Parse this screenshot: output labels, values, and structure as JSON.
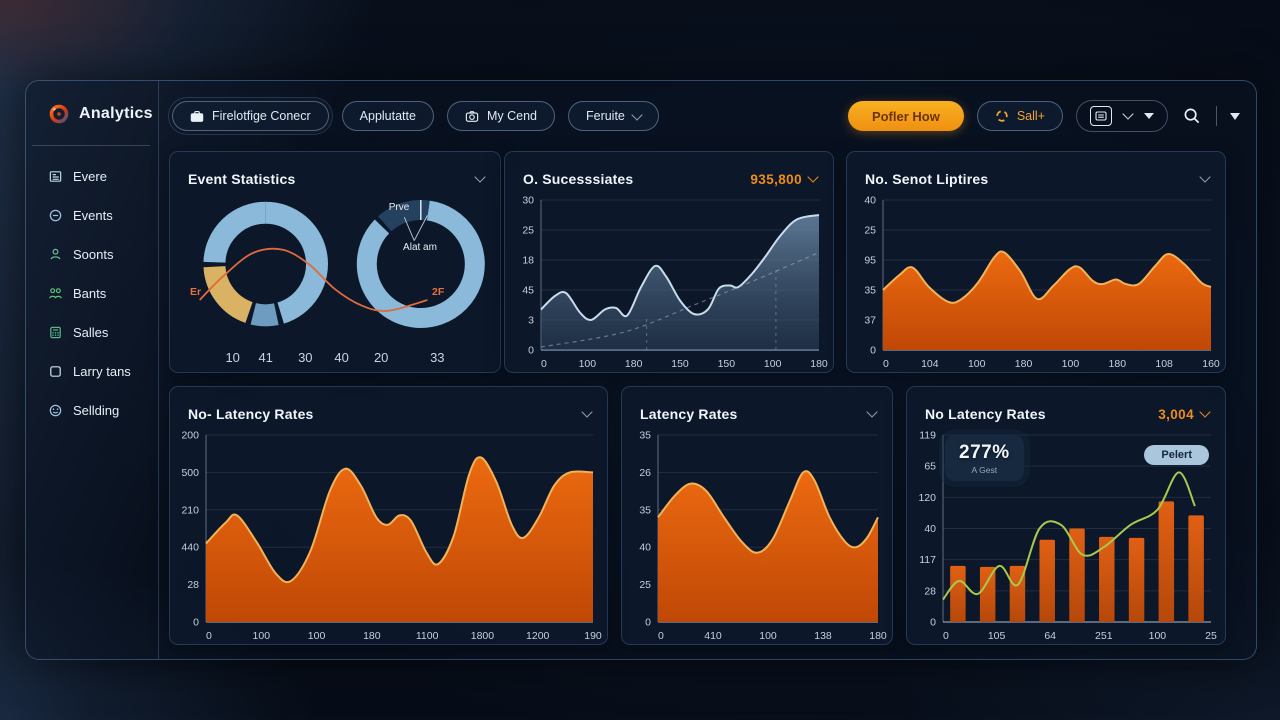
{
  "app": {
    "logo": "Analytics"
  },
  "sidebar": {
    "items": [
      {
        "icon": "news-icon",
        "label": "Evere"
      },
      {
        "icon": "clock-icon",
        "label": "Events"
      },
      {
        "icon": "person-icon",
        "label": "Soonts"
      },
      {
        "icon": "people-icon",
        "label": "Bants"
      },
      {
        "icon": "calculator-icon",
        "label": "Salles"
      },
      {
        "icon": "square-icon",
        "label": "Larry tans"
      },
      {
        "icon": "smiley-icon",
        "label": "Sellding"
      }
    ]
  },
  "toolbar": {
    "filters": [
      {
        "icon": "briefcase-icon",
        "label": "Firelotfige Conecr"
      },
      {
        "label": "Applutatte"
      },
      {
        "icon": "camera-icon",
        "label": "My Cend"
      },
      {
        "label": "Feruite"
      }
    ],
    "primary_label": "Pofler How",
    "sale_label": "Sall+"
  },
  "colors": {
    "accent_orange": "#ef8c1a",
    "chart_orange_top": "#ec6a10",
    "chart_orange_bottom": "#c04806",
    "donut_blue": "#8ab9d9",
    "donut_yellow": "#d9b264",
    "line_green": "#a8c94e"
  },
  "panels": {
    "event_statistics": {
      "title": "Event Statistics"
    },
    "success_rates": {
      "title": "O. Sucesssiates",
      "value": "935,800"
    },
    "sensor_uptimes": {
      "title": "No. Senot Liptires"
    },
    "no_latency_rates": {
      "title": "No- Latency Rates"
    },
    "latency_rates": {
      "title": "Latency Rates"
    },
    "latency_overview": {
      "title": "No Latency Rates",
      "value": "3,004",
      "badge_value": "277%",
      "badge_label": "A Gest",
      "pill_label": "Pelert"
    }
  },
  "chart_data": {
    "event_statistics": {
      "type": "donuts",
      "donuts": [
        {
          "cx": 0.29,
          "cy": 0.4,
          "r": 0.285,
          "sw": 22,
          "segs": [
            {
              "color": "#8ab9d9",
              "a0": 0,
              "a1": 163
            },
            {
              "color": "#6e9cc0",
              "a0": 168,
              "a1": 194
            },
            {
              "color": "#d9b264",
              "a0": 199,
              "a1": 267
            },
            {
              "color": "#8ab9d9",
              "a0": 272,
              "a1": 360
            }
          ]
        },
        {
          "cx": 0.76,
          "cy": 0.4,
          "r": 0.3,
          "sw": 20,
          "tick": 0,
          "segs": [
            {
              "color": "#8ab9d9",
              "a0": 8,
              "a1": 314
            },
            {
              "color": "#24415f",
              "a0": 318,
              "a1": 368
            }
          ]
        }
      ],
      "pointers": [
        [
          [
            0.74,
            0.27
          ],
          [
            0.71,
            0.14
          ]
        ],
        [
          [
            0.74,
            0.27
          ],
          [
            0.78,
            0.13
          ]
        ]
      ],
      "curve": {
        "color": "#e06a3c",
        "points": [
          [
            0.09,
            0.6
          ],
          [
            0.16,
            0.47
          ],
          [
            0.25,
            0.34
          ],
          [
            0.34,
            0.32
          ],
          [
            0.42,
            0.4
          ],
          [
            0.5,
            0.54
          ],
          [
            0.58,
            0.63
          ],
          [
            0.66,
            0.66
          ],
          [
            0.78,
            0.6
          ]
        ]
      },
      "labels": {
        "curve_left": "Er",
        "curve_right": "2F",
        "slice_outer": "Prve",
        "slice_inner": "Alat am"
      },
      "xticks": [
        "10",
        "41",
        "30",
        "40",
        "20",
        "33"
      ],
      "xtick_pos": [
        0.19,
        0.29,
        0.41,
        0.52,
        0.64,
        0.81
      ]
    },
    "success_rates": {
      "type": "area",
      "stroke": "#c9dcec",
      "fill_top": "rgba(112,142,172,0.80)",
      "fill_bottom": "rgba(58,82,108,0.40)",
      "yticks": [
        "30",
        "25",
        "18",
        "45",
        "3",
        "0"
      ],
      "xticks": [
        "0",
        "100",
        "180",
        "150",
        "150",
        "100",
        "180"
      ],
      "points": [
        [
          0,
          0.27
        ],
        [
          0.05,
          0.36
        ],
        [
          0.09,
          0.38
        ],
        [
          0.14,
          0.25
        ],
        [
          0.18,
          0.2
        ],
        [
          0.23,
          0.27
        ],
        [
          0.27,
          0.28
        ],
        [
          0.31,
          0.23
        ],
        [
          0.36,
          0.42
        ],
        [
          0.41,
          0.56
        ],
        [
          0.45,
          0.49
        ],
        [
          0.5,
          0.33
        ],
        [
          0.55,
          0.24
        ],
        [
          0.6,
          0.27
        ],
        [
          0.64,
          0.41
        ],
        [
          0.68,
          0.43
        ],
        [
          0.71,
          0.42
        ],
        [
          0.76,
          0.51
        ],
        [
          0.81,
          0.63
        ],
        [
          0.86,
          0.76
        ],
        [
          0.92,
          0.87
        ],
        [
          1,
          0.9
        ]
      ],
      "dashed": {
        "points": [
          [
            0,
            0.02
          ],
          [
            0.3,
            0.12
          ],
          [
            0.55,
            0.3
          ],
          [
            0.75,
            0.45
          ],
          [
            1,
            0.65
          ]
        ],
        "vlines": [
          [
            0.38,
            0.22
          ],
          [
            0.845,
            0.56
          ]
        ]
      }
    },
    "sensor_uptimes": {
      "type": "area",
      "stroke": "#f0b35a",
      "fill_top": "#ec6a10",
      "fill_bottom": "#c04806",
      "yticks": [
        "40",
        "25",
        "95",
        "35",
        "37",
        "0"
      ],
      "xticks": [
        "0",
        "104",
        "100",
        "180",
        "100",
        "180",
        "108",
        "160"
      ],
      "points": [
        [
          0,
          0.4
        ],
        [
          0.05,
          0.5
        ],
        [
          0.09,
          0.55
        ],
        [
          0.14,
          0.42
        ],
        [
          0.2,
          0.32
        ],
        [
          0.24,
          0.34
        ],
        [
          0.29,
          0.45
        ],
        [
          0.34,
          0.62
        ],
        [
          0.37,
          0.65
        ],
        [
          0.42,
          0.52
        ],
        [
          0.47,
          0.34
        ],
        [
          0.52,
          0.43
        ],
        [
          0.57,
          0.54
        ],
        [
          0.6,
          0.55
        ],
        [
          0.64,
          0.46
        ],
        [
          0.67,
          0.44
        ],
        [
          0.71,
          0.47
        ],
        [
          0.74,
          0.44
        ],
        [
          0.78,
          0.44
        ],
        [
          0.83,
          0.56
        ],
        [
          0.87,
          0.64
        ],
        [
          0.92,
          0.57
        ],
        [
          0.97,
          0.45
        ],
        [
          1,
          0.42
        ]
      ]
    },
    "no_latency_rates": {
      "type": "area",
      "stroke": "#f0b35a",
      "fill_top": "#ec6a10",
      "fill_bottom": "#c04806",
      "yticks": [
        "200",
        "500",
        "210",
        "440",
        "28",
        "0"
      ],
      "xticks": [
        "0",
        "100",
        "100",
        "180",
        "1100",
        "1800",
        "1200",
        "190"
      ],
      "points": [
        [
          0,
          0.42
        ],
        [
          0.05,
          0.53
        ],
        [
          0.08,
          0.57
        ],
        [
          0.13,
          0.43
        ],
        [
          0.18,
          0.26
        ],
        [
          0.22,
          0.22
        ],
        [
          0.27,
          0.38
        ],
        [
          0.32,
          0.7
        ],
        [
          0.36,
          0.82
        ],
        [
          0.4,
          0.73
        ],
        [
          0.44,
          0.56
        ],
        [
          0.47,
          0.52
        ],
        [
          0.5,
          0.57
        ],
        [
          0.53,
          0.54
        ],
        [
          0.57,
          0.37
        ],
        [
          0.6,
          0.31
        ],
        [
          0.64,
          0.46
        ],
        [
          0.68,
          0.79
        ],
        [
          0.71,
          0.88
        ],
        [
          0.75,
          0.75
        ],
        [
          0.79,
          0.52
        ],
        [
          0.82,
          0.45
        ],
        [
          0.86,
          0.56
        ],
        [
          0.9,
          0.73
        ],
        [
          0.94,
          0.8
        ],
        [
          1,
          0.8
        ]
      ]
    },
    "latency_rates": {
      "type": "area",
      "stroke": "#f0b35a",
      "fill_top": "#ec6a10",
      "fill_bottom": "#c04806",
      "yticks": [
        "35",
        "26",
        "35",
        "40",
        "25",
        "0"
      ],
      "xticks": [
        "0",
        "410",
        "100",
        "138",
        "180"
      ],
      "points": [
        [
          0,
          0.56
        ],
        [
          0.08,
          0.68
        ],
        [
          0.15,
          0.74
        ],
        [
          0.22,
          0.7
        ],
        [
          0.3,
          0.56
        ],
        [
          0.38,
          0.43
        ],
        [
          0.45,
          0.37
        ],
        [
          0.52,
          0.44
        ],
        [
          0.6,
          0.65
        ],
        [
          0.66,
          0.8
        ],
        [
          0.71,
          0.76
        ],
        [
          0.78,
          0.56
        ],
        [
          0.85,
          0.43
        ],
        [
          0.9,
          0.4
        ],
        [
          0.95,
          0.45
        ],
        [
          1,
          0.56
        ]
      ]
    },
    "latency_overview": {
      "type": "bars",
      "bar_top": "#e06014",
      "bar_bottom": "#b5480a",
      "line_color": "#a8c94e",
      "yticks": [
        "119",
        "65",
        "120",
        "40",
        "117",
        "28",
        "0"
      ],
      "xticks": [
        "0",
        "105",
        "64",
        "251",
        "100",
        "25"
      ],
      "bars": [
        0.3,
        0.295,
        0.3,
        0.44,
        0.5,
        0.455,
        0.45,
        0.645,
        0.57
      ],
      "line": [
        [
          0,
          0.12
        ],
        [
          0.06,
          0.22
        ],
        [
          0.13,
          0.15
        ],
        [
          0.21,
          0.3
        ],
        [
          0.28,
          0.2
        ],
        [
          0.36,
          0.5
        ],
        [
          0.44,
          0.52
        ],
        [
          0.52,
          0.36
        ],
        [
          0.6,
          0.4
        ],
        [
          0.7,
          0.52
        ],
        [
          0.8,
          0.6
        ],
        [
          0.88,
          0.8
        ],
        [
          0.94,
          0.62
        ]
      ]
    }
  }
}
